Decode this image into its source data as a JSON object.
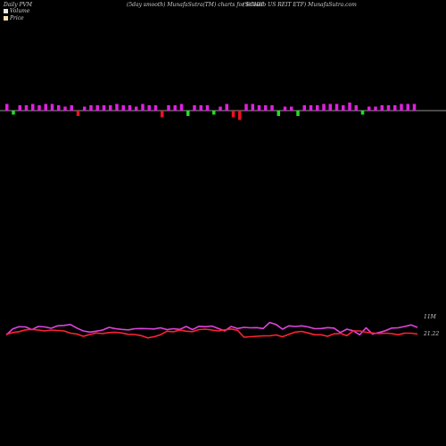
{
  "header": {
    "left": "Daily PVM",
    "center": "(5day smooth) MunafaSutra(TM) charts for SCHH",
    "right": "(Schwab US REIT ETF) MunafaSutra.com"
  },
  "legend": {
    "volume_label": "Volume",
    "volume_color": "#e8e8e8",
    "price_label": "Price",
    "price_color": "#f5deb3"
  },
  "chart_data": [
    {
      "type": "bar",
      "name": "volume-momentum",
      "colors": {
        "up": "#e020e0",
        "down_green": "#22dd22",
        "down_red": "#ee1122"
      },
      "values": [
        5,
        -3,
        4,
        4,
        5,
        4,
        5,
        5,
        4,
        3,
        4,
        -4,
        3,
        4,
        4,
        4,
        4,
        5,
        4,
        4,
        3,
        5,
        4,
        4,
        -5,
        4,
        4,
        5,
        -4,
        4,
        4,
        4,
        -3,
        3,
        5,
        -5,
        -7,
        5,
        5,
        4,
        4,
        4,
        -4,
        3,
        3,
        -4,
        4,
        4,
        4,
        5,
        5,
        5,
        4,
        6,
        4,
        -3,
        3,
        3,
        4,
        4,
        4,
        5,
        5,
        5
      ],
      "signs": [
        "p",
        "g",
        "p",
        "p",
        "p",
        "p",
        "p",
        "p",
        "p",
        "p",
        "p",
        "r",
        "p",
        "p",
        "p",
        "p",
        "p",
        "p",
        "p",
        "p",
        "p",
        "p",
        "p",
        "p",
        "r",
        "p",
        "p",
        "p",
        "g",
        "p",
        "p",
        "p",
        "g",
        "p",
        "p",
        "r",
        "r",
        "p",
        "p",
        "p",
        "p",
        "p",
        "g",
        "p",
        "p",
        "g",
        "p",
        "p",
        "p",
        "p",
        "p",
        "p",
        "p",
        "p",
        "p",
        "g",
        "p",
        "p",
        "p",
        "p",
        "p",
        "p",
        "p",
        "p"
      ]
    },
    {
      "type": "line",
      "name": "price-volume",
      "series": [
        {
          "key": "volume",
          "color": "#dd44dd",
          "values": [
            14.2,
            11.5,
            10.5,
            10.6,
            11.8,
            10.4,
            10.6,
            11.2,
            10.1,
            9.9,
            9.5,
            11.1,
            12.4,
            12.9,
            12.5,
            12.0,
            10.8,
            11.4,
            11.7,
            11.9,
            11.4,
            11.3,
            11.4,
            11.5,
            11.0,
            11.8,
            11.4,
            11.7,
            10.4,
            11.8,
            10.3,
            10.5,
            10.2,
            11.3,
            12.4,
            10.4,
            11.3,
            10.8,
            11.0,
            10.9,
            11.3,
            8.6,
            9.5,
            11.6,
            10.1,
            10.4,
            10.1,
            10.6,
            11.4,
            11.3,
            10.9,
            11.1,
            13.1,
            11.6,
            12.3,
            14.1,
            11.0,
            13.8,
            13.1,
            12.3,
            11.1,
            11.0,
            10.4,
            9.7,
            10.8
          ]
        },
        {
          "key": "price",
          "color": "#ff2233",
          "values": [
            14.0,
            13.1,
            12.7,
            11.9,
            11.7,
            12.0,
            12.4,
            12.0,
            12.2,
            12.4,
            13.4,
            13.8,
            14.8,
            14.0,
            13.3,
            13.6,
            13.1,
            13.0,
            13.3,
            13.9,
            14.0,
            14.5,
            15.5,
            15.0,
            14.1,
            12.5,
            12.8,
            12.0,
            12.5,
            12.7,
            11.8,
            11.6,
            12.0,
            12.4,
            11.9,
            11.5,
            12.1,
            15.2,
            15.0,
            14.8,
            14.6,
            14.6,
            14.2,
            15.0,
            13.9,
            12.9,
            12.6,
            13.3,
            14.1,
            14.1,
            14.8,
            13.7,
            13.5,
            14.5,
            12.4,
            12.4,
            13.0,
            13.3,
            13.6,
            13.4,
            13.6,
            14.1,
            13.4,
            13.4,
            13.8
          ]
        }
      ],
      "annotations": {
        "volume_value": "11M",
        "price_value": "21.22"
      }
    }
  ]
}
